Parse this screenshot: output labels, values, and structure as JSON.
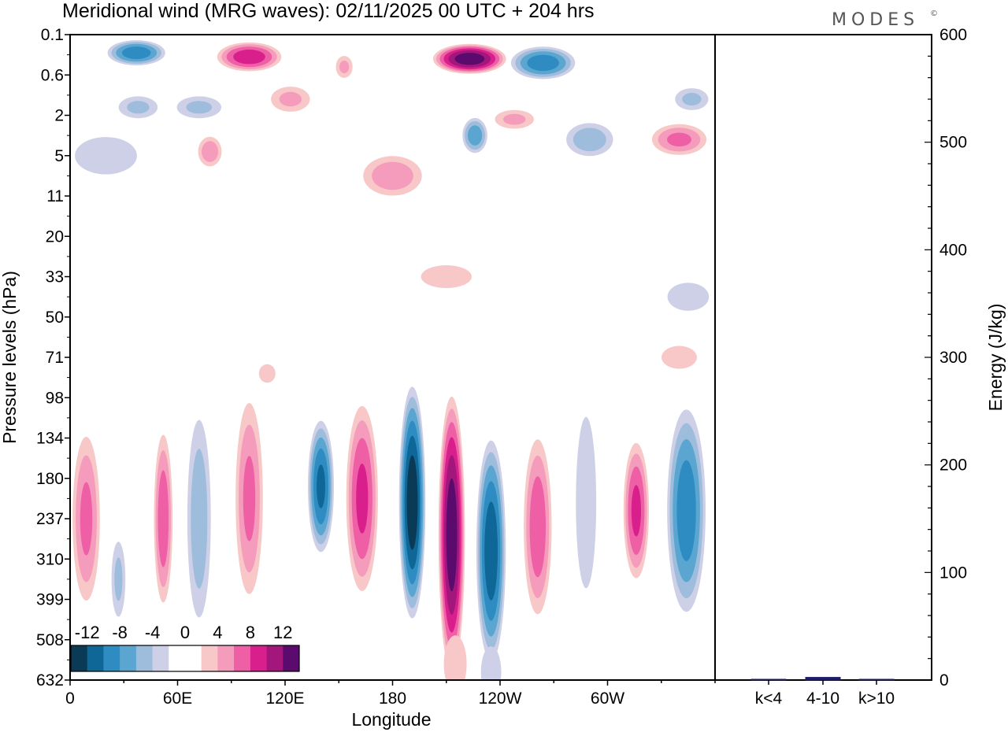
{
  "title": "Meridional wind (MRG waves):  02/11/2025  00 UTC  + 204 hrs",
  "logo": "MODES",
  "logo_mark": "©",
  "chart_data": {
    "type": "heatmap",
    "title": "Meridional wind (MRG waves):  02/11/2025  00 UTC  + 204 hrs",
    "xlabel": "Longitude",
    "ylabel": "Pressure levels (hPa)",
    "x_ticks": [
      "0",
      "60E",
      "120E",
      "180",
      "120W",
      "60W"
    ],
    "x_tick_degrees": [
      0,
      60,
      120,
      180,
      240,
      300
    ],
    "xlim": [
      0,
      360
    ],
    "y_levels": [
      "0.1",
      "0.6",
      "2",
      "5",
      "11",
      "20",
      "33",
      "50",
      "71",
      "98",
      "134",
      "180",
      "237",
      "310",
      "399",
      "508",
      "632"
    ],
    "colorbar": {
      "labels": [
        "-12",
        "-8",
        "-4",
        "0",
        "4",
        "8",
        "12"
      ],
      "bins": [
        -14,
        -12,
        -10,
        -8,
        -6,
        -4,
        -2,
        0,
        2,
        4,
        6,
        8,
        10,
        12,
        14
      ],
      "colors": [
        "#0a3a56",
        "#0e6797",
        "#2f8cc2",
        "#5aa6d1",
        "#9ebcdb",
        "#cdd0e6",
        "#ffffff",
        "#ffffff",
        "#f8c7c7",
        "#f59bbb",
        "#ee5fa5",
        "#d81f8c",
        "#a3177d",
        "#5b0a6e"
      ]
    },
    "features": [
      {
        "lon": 37,
        "level": 0.45,
        "value": -10,
        "wlon": 18,
        "wlev": 0.35
      },
      {
        "lon": 100,
        "level": 0.55,
        "value": 10,
        "wlon": 20,
        "wlev": 0.4
      },
      {
        "lon": 223,
        "level": 0.6,
        "value": 14,
        "wlon": 22,
        "wlev": 0.4
      },
      {
        "lon": 264,
        "level": 0.7,
        "value": -10,
        "wlon": 20,
        "wlev": 0.45
      },
      {
        "lon": 153,
        "level": 0.8,
        "value": 5,
        "wlon": 6,
        "wlev": 0.35
      },
      {
        "lon": 123,
        "level": 1.6,
        "value": 5,
        "wlon": 14,
        "wlev": 0.4
      },
      {
        "lon": 38,
        "level": 1.8,
        "value": -5,
        "wlon": 14,
        "wlev": 0.35
      },
      {
        "lon": 72,
        "level": 1.8,
        "value": -5,
        "wlon": 16,
        "wlev": 0.35
      },
      {
        "lon": 347,
        "level": 1.6,
        "value": -5,
        "wlon": 12,
        "wlev": 0.35
      },
      {
        "lon": 226,
        "level": 2.5,
        "value": -8,
        "wlon": 8,
        "wlev": 0.5
      },
      {
        "lon": 248,
        "level": 2.1,
        "value": 5,
        "wlon": 14,
        "wlev": 0.3
      },
      {
        "lon": 290,
        "level": 2.6,
        "value": -6,
        "wlon": 16,
        "wlev": 0.5
      },
      {
        "lon": 340,
        "level": 2.6,
        "value": 7,
        "wlon": 18,
        "wlev": 0.45
      },
      {
        "lon": 78,
        "level": 2.9,
        "value": 6,
        "wlon": 8,
        "wlev": 0.45
      },
      {
        "lon": 180,
        "level": 3.5,
        "value": 6,
        "wlon": 20,
        "wlev": 0.6
      },
      {
        "lon": 20,
        "level": 3.0,
        "value": -3,
        "wlon": 30,
        "wlev": 0.8
      },
      {
        "lon": 210,
        "level": 6.0,
        "value": 4,
        "wlon": 20,
        "wlev": 0.4
      },
      {
        "lon": 340,
        "level": 8.0,
        "value": 4,
        "wlon": 14,
        "wlev": 0.4
      },
      {
        "lon": 345,
        "level": 6.5,
        "value": -3,
        "wlon": 20,
        "wlev": 0.6
      },
      {
        "lon": 110,
        "level": 8.4,
        "value": 3,
        "wlon": 8,
        "wlev": 0.4
      },
      {
        "lon": 9,
        "level": 12.0,
        "value": 7,
        "wlon": 9,
        "wlev": 2.4
      },
      {
        "lon": 27,
        "level": 13.5,
        "value": -5,
        "wlon": 5,
        "wlev": 1.2
      },
      {
        "lon": 52,
        "level": 12.0,
        "value": 8,
        "wlon": 6,
        "wlev": 2.4
      },
      {
        "lon": 72,
        "level": 12.0,
        "value": -6,
        "wlon": 8,
        "wlev": 3.0
      },
      {
        "lon": 100,
        "level": 11.5,
        "value": 7,
        "wlon": 9,
        "wlev": 2.8
      },
      {
        "lon": 140,
        "level": 11.2,
        "value": -11,
        "wlon": 8,
        "wlev": 1.8
      },
      {
        "lon": 163,
        "level": 11.5,
        "value": 9,
        "wlon": 10,
        "wlev": 2.6
      },
      {
        "lon": 191,
        "level": 11.6,
        "value": -14,
        "wlon": 8,
        "wlev": 3.1
      },
      {
        "lon": 213,
        "level": 12.4,
        "value": 14,
        "wlon": 8,
        "wlev": 3.7
      },
      {
        "lon": 235,
        "level": 12.8,
        "value": -12,
        "wlon": 9,
        "wlev": 3.0
      },
      {
        "lon": 261,
        "level": 12.2,
        "value": 8,
        "wlon": 9,
        "wlev": 2.5
      },
      {
        "lon": 288,
        "level": 11.6,
        "value": -4,
        "wlon": 8,
        "wlev": 3.0
      },
      {
        "lon": 316,
        "level": 11.8,
        "value": 9,
        "wlon": 8,
        "wlev": 1.9
      },
      {
        "lon": 344,
        "level": 11.8,
        "value": -10,
        "wlon": 12,
        "wlev": 2.8
      },
      {
        "lon": 215,
        "level": 15.6,
        "value": 4,
        "wlon": 9,
        "wlev": 1.0
      },
      {
        "lon": 235,
        "level": 15.8,
        "value": -4,
        "wlon": 8,
        "wlev": 0.9
      }
    ],
    "energy_bars": {
      "ylabel": "Energy (J/kg)",
      "ylim": [
        0,
        600
      ],
      "y_ticks": [
        0,
        100,
        200,
        300,
        400,
        500,
        600
      ],
      "categories": [
        "k<4",
        "4-10",
        "k>10"
      ],
      "values": [
        0,
        2.5,
        0
      ]
    }
  }
}
